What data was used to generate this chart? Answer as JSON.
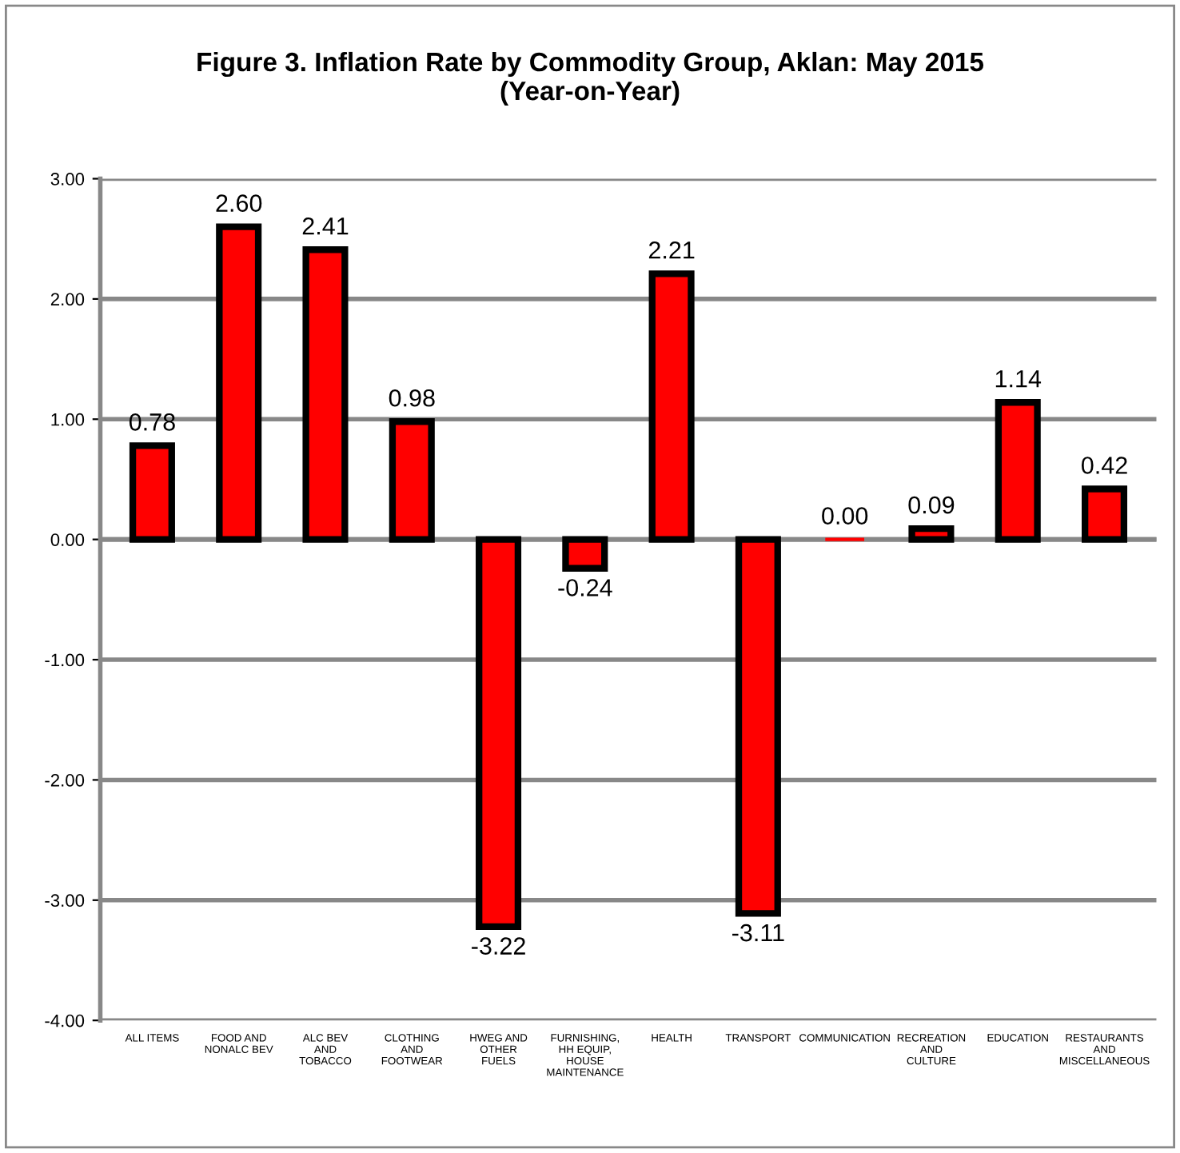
{
  "chart_data": {
    "type": "bar",
    "title": "Figure 3. Inflation Rate by Commodity Group, Aklan: May 2015\n(Year-on-Year)",
    "categories": [
      "ALL ITEMS",
      "FOOD AND\nNONALC BEV",
      "ALC BEV\nAND\nTOBACCO",
      "CLOTHING\nAND\nFOOTWEAR",
      "HWEG AND\nOTHER\nFUELS",
      "FURNISHING,\nHH EQUIP,\nHOUSE\nMAINTENANCE",
      "HEALTH",
      "TRANSPORT",
      "COMMUNICATION",
      "RECREATION\nAND\nCULTURE",
      "EDUCATION",
      "RESTAURANTS\nAND\nMISCELLANEOUS"
    ],
    "values": [
      0.78,
      2.6,
      2.41,
      0.98,
      -3.22,
      -0.24,
      2.21,
      -3.11,
      0.0,
      0.09,
      1.14,
      0.42
    ],
    "color": "#ff0000",
    "value_labels": [
      "0.78",
      "2.60",
      "2.41",
      "0.98",
      "-3.22",
      "-0.24",
      "2.21",
      "-3.11",
      "0.00",
      "0.09",
      "1.14",
      "0.42"
    ],
    "ylim": [
      -4,
      3
    ],
    "yticks": [
      {
        "value": -4,
        "label": "-4.00"
      },
      {
        "value": -3,
        "label": "-3.00"
      },
      {
        "value": -2,
        "label": "-2.00"
      },
      {
        "value": -1,
        "label": "-1.00"
      },
      {
        "value": 0,
        "label": "0.00"
      },
      {
        "value": 1,
        "label": "1.00"
      },
      {
        "value": 2,
        "label": "2.00"
      },
      {
        "value": 3,
        "label": "3.00"
      }
    ],
    "grid": "y",
    "legend": false
  }
}
